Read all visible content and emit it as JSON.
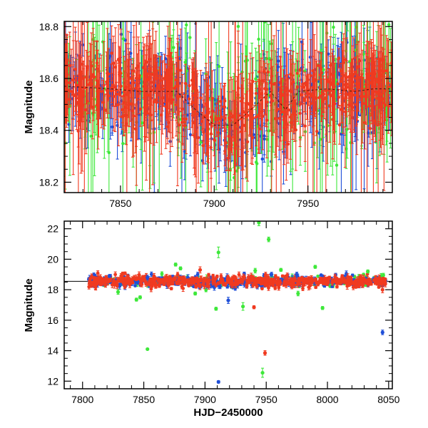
{
  "colors": {
    "blue": "#1f4fd8",
    "green": "#3ee83a",
    "red": "#f03a20",
    "axis": "#000000"
  },
  "chart_data": [
    {
      "type": "scatter",
      "panel": "top",
      "title": "",
      "xlabel": "",
      "ylabel": "Magnitude",
      "xlim": [
        7820,
        7995
      ],
      "ylim": [
        18.82,
        18.16
      ],
      "y_inverted": true,
      "xticks": [
        7850,
        7900,
        7950
      ],
      "yticks": [
        18.2,
        18.4,
        18.6,
        18.8
      ],
      "ytick_labels": [
        "18.2",
        "18.4",
        "18.6",
        "18.8"
      ],
      "grid": false,
      "legend": "none",
      "baseline": 18.57,
      "series": [
        {
          "color": "blue",
          "n": 360,
          "scatter": 0.08,
          "err_min": 0.03,
          "err_max": 0.14
        },
        {
          "color": "green",
          "n": 160,
          "scatter": 0.13,
          "err_min": 0.05,
          "err_max": 0.3
        },
        {
          "color": "red",
          "n": 560,
          "scatter": 0.06,
          "err_min": 0.03,
          "err_max": 0.18
        }
      ],
      "trend": [
        {
          "x": 7820,
          "y": 18.57
        },
        {
          "x": 7845,
          "y": 18.56
        },
        {
          "x": 7860,
          "y": 18.55
        },
        {
          "x": 7880,
          "y": 18.55
        },
        {
          "x": 7890,
          "y": 18.48
        },
        {
          "x": 7900,
          "y": 18.42
        },
        {
          "x": 7910,
          "y": 18.42
        },
        {
          "x": 7918,
          "y": 18.47
        },
        {
          "x": 7930,
          "y": 18.55
        },
        {
          "x": 7938,
          "y": 18.48
        },
        {
          "x": 7945,
          "y": 18.55
        },
        {
          "x": 7960,
          "y": 18.56
        },
        {
          "x": 7975,
          "y": 18.55
        },
        {
          "x": 7985,
          "y": 18.56
        },
        {
          "x": 7995,
          "y": 18.56
        }
      ]
    },
    {
      "type": "scatter",
      "panel": "bottom",
      "title": "",
      "xlabel": "HJD−2450000",
      "ylabel": "Magnitude",
      "xlim": [
        7785,
        8053
      ],
      "ylim": [
        22.5,
        11.5
      ],
      "y_inverted": true,
      "xticks": [
        7800,
        7850,
        7900,
        7950,
        8000,
        8050
      ],
      "yticks": [
        12,
        14,
        16,
        18,
        20,
        22
      ],
      "ytick_labels": [
        "12",
        "14",
        "16",
        "18",
        "20",
        "22"
      ],
      "grid": false,
      "legend": "none",
      "reference_line": 18.55,
      "main_band": {
        "x_start": 7805,
        "x_end": 8048,
        "center": 18.55,
        "scatter": 0.18
      },
      "outliers": [
        {
          "series": "blue",
          "x": 7911,
          "y": 11.95,
          "err": 0.08
        },
        {
          "series": "green",
          "x": 7947,
          "y": 12.55,
          "err": 0.3
        },
        {
          "series": "red",
          "x": 7949,
          "y": 13.85,
          "err": 0.15
        },
        {
          "series": "green",
          "x": 7853,
          "y": 14.1,
          "err": 0.05
        },
        {
          "series": "blue",
          "x": 8045,
          "y": 15.2,
          "err": 0.15
        },
        {
          "series": "green",
          "x": 7844,
          "y": 17.35,
          "err": 0.1
        },
        {
          "series": "green",
          "x": 7847,
          "y": 17.5,
          "err": 0.1
        },
        {
          "series": "green",
          "x": 7909,
          "y": 16.75,
          "err": 0.1
        },
        {
          "series": "blue",
          "x": 7919,
          "y": 17.3,
          "err": 0.2
        },
        {
          "series": "green",
          "x": 7931,
          "y": 16.9,
          "err": 0.25
        },
        {
          "series": "red",
          "x": 7940,
          "y": 16.85,
          "err": 0.1
        },
        {
          "series": "green",
          "x": 7996,
          "y": 16.8,
          "err": 0.1
        },
        {
          "series": "green",
          "x": 7829,
          "y": 17.85,
          "err": 0.15
        },
        {
          "series": "green",
          "x": 7976,
          "y": 17.75,
          "err": 0.15
        },
        {
          "series": "green",
          "x": 7892,
          "y": 17.75,
          "err": 0.1
        },
        {
          "series": "red",
          "x": 8045,
          "y": 18.0,
          "err": 0.2
        },
        {
          "series": "green",
          "x": 7876,
          "y": 19.65,
          "err": 0.1
        },
        {
          "series": "green",
          "x": 7911,
          "y": 20.45,
          "err": 0.35
        },
        {
          "series": "green",
          "x": 7952,
          "y": 21.3,
          "err": 0.15
        },
        {
          "series": "green",
          "x": 7944,
          "y": 22.4,
          "err": 0.2
        },
        {
          "series": "green",
          "x": 7941,
          "y": 19.25,
          "err": 0.15
        },
        {
          "series": "green",
          "x": 7880,
          "y": 19.4,
          "err": 0.1
        },
        {
          "series": "blue",
          "x": 7853,
          "y": 18.8,
          "err": 0.15
        },
        {
          "series": "green",
          "x": 7990,
          "y": 19.5,
          "err": 0.1
        },
        {
          "series": "blue",
          "x": 7975,
          "y": 19.0,
          "err": 0.15
        },
        {
          "series": "green",
          "x": 8033,
          "y": 19.2,
          "err": 0.1
        },
        {
          "series": "red",
          "x": 7896,
          "y": 19.3,
          "err": 0.2
        },
        {
          "series": "blue",
          "x": 7822,
          "y": 18.9,
          "err": 0.1
        },
        {
          "series": "green",
          "x": 7962,
          "y": 19.3,
          "err": 0.1
        }
      ]
    }
  ]
}
